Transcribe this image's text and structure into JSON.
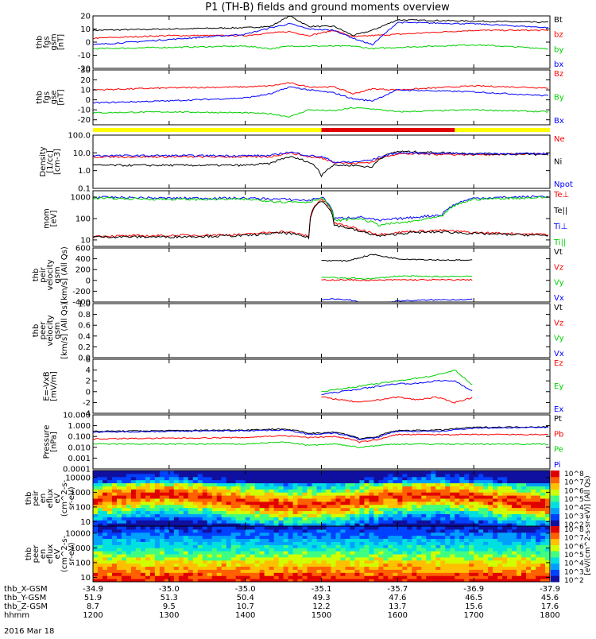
{
  "title": "P1 (TH-B) fields and ground moments overview",
  "date_label": "2016 Mar 18",
  "colors": {
    "black": "#000000",
    "red": "#ff0000",
    "green": "#00d000",
    "blue": "#0000ff",
    "yellow": "#ffff00",
    "barred": "#e00000"
  },
  "ephemeris": {
    "rows": [
      {
        "label": "thb_X-GSM",
        "values": [
          "-34.9",
          "-35.0",
          "-35.0",
          "-35.1",
          "-35.7",
          "-36.9",
          "-37.9"
        ]
      },
      {
        "label": "thb_Y-GSM",
        "values": [
          "51.9",
          "51.3",
          "50.4",
          "49.3",
          "47.6",
          "46.5",
          "45.6"
        ]
      },
      {
        "label": "thb_Z-GSM",
        "values": [
          "8.7",
          "9.5",
          "10.7",
          "12.2",
          "13.7",
          "15.6",
          "17.6"
        ]
      },
      {
        "label": "hhmm",
        "values": [
          "1200",
          "1300",
          "1400",
          "1500",
          "1600",
          "1700",
          "1800"
        ]
      }
    ]
  },
  "chart_data": [
    {
      "type": "line",
      "id": "fgs_gsm",
      "ylabel": [
        "thb",
        "fgs",
        "gsm",
        "[nT]"
      ],
      "ylim": [
        -20,
        20
      ],
      "ticks": [
        "20",
        "10",
        "0",
        "-10",
        "-20"
      ],
      "legend": [
        {
          "name": "Bt",
          "color": "#000000"
        },
        {
          "name": "bz",
          "color": "#ff0000"
        },
        {
          "name": "by",
          "color": "#00d000"
        },
        {
          "name": "bx",
          "color": "#0000ff"
        }
      ],
      "x": [
        "12:00",
        "13:00",
        "14:00",
        "14:20",
        "14:35",
        "14:50",
        "15:10",
        "15:25",
        "15:40",
        "16:00",
        "17:00",
        "18:00"
      ],
      "series": [
        {
          "name": "Bt",
          "values": [
            9,
            10,
            11,
            12,
            20,
            12,
            12,
            5,
            9,
            17,
            16,
            15
          ]
        },
        {
          "name": "bz",
          "values": [
            3,
            5,
            5,
            7,
            8,
            5,
            9,
            4,
            5,
            6,
            9,
            9
          ]
        },
        {
          "name": "by",
          "values": [
            -5,
            -4,
            -3,
            -5,
            -3,
            -3,
            -3,
            -3,
            -5,
            -4,
            -2,
            -5
          ]
        },
        {
          "name": "bx",
          "values": [
            -2,
            2,
            6,
            11,
            14,
            10,
            9,
            3,
            -2,
            15,
            14,
            11
          ]
        }
      ]
    },
    {
      "type": "line",
      "id": "fgs_gse",
      "ylabel": [
        "thb",
        "fgs",
        "gse",
        "[nT]"
      ],
      "ylim": [
        -25,
        30
      ],
      "ticks": [
        "30",
        "20",
        "10",
        "0",
        "-10",
        "-20"
      ],
      "legend": [
        {
          "name": "Bz",
          "color": "#ff0000"
        },
        {
          "name": "By",
          "color": "#00d000"
        },
        {
          "name": "Bx",
          "color": "#0000ff"
        }
      ],
      "x": [
        "12:00",
        "13:00",
        "14:00",
        "14:20",
        "14:35",
        "14:50",
        "15:10",
        "15:25",
        "15:40",
        "16:00",
        "17:00",
        "18:00"
      ],
      "series": [
        {
          "name": "Bz",
          "values": [
            10,
            12,
            13,
            14,
            17,
            13,
            13,
            6,
            11,
            10,
            14,
            12
          ]
        },
        {
          "name": "By",
          "values": [
            -13,
            -12,
            -13,
            -14,
            -17,
            -10,
            -11,
            -8,
            -9,
            -12,
            -10,
            -12
          ]
        },
        {
          "name": "Bx",
          "values": [
            -3,
            -1,
            2,
            6,
            13,
            10,
            7,
            1,
            -1,
            10,
            8,
            4
          ]
        }
      ]
    },
    {
      "type": "line",
      "id": "density",
      "ylabel": [
        "Density",
        "[1/cc]",
        "[cm-3]"
      ],
      "scale": "log",
      "ylim": [
        0.1,
        100
      ],
      "ticks": [
        "100.0",
        "10.0",
        "1.0",
        "0.1"
      ],
      "legend": [
        {
          "name": "Ne",
          "color": "#ff0000"
        },
        {
          "name": "Ni",
          "color": "#000000"
        },
        {
          "name": "Npot",
          "color": "#0000ff"
        }
      ],
      "x": [
        "12:00",
        "13:00",
        "14:00",
        "14:20",
        "14:35",
        "14:50",
        "15:00",
        "15:10",
        "15:25",
        "15:40",
        "16:00",
        "17:00",
        "18:00"
      ],
      "series": [
        {
          "name": "Ne",
          "values": [
            6,
            6,
            6,
            6,
            10,
            6,
            5,
            3,
            2.5,
            3,
            9,
            8,
            9
          ]
        },
        {
          "name": "Ni",
          "values": [
            2,
            2,
            2,
            2.5,
            6,
            3,
            0.5,
            2,
            2,
            1.5,
            12,
            9,
            8
          ]
        },
        {
          "name": "Npot",
          "values": [
            7,
            7,
            7,
            7,
            11,
            7,
            6,
            3,
            3,
            4,
            10,
            9,
            9
          ]
        }
      ]
    },
    {
      "type": "line",
      "id": "temperature",
      "ylabel": [
        "mom",
        "[eV]"
      ],
      "scale": "log",
      "ylim": [
        5,
        2000
      ],
      "ticks": [
        "1000",
        "100",
        "10"
      ],
      "legend": [
        {
          "name": "Te⊥",
          "color": "#ff0000"
        },
        {
          "name": "Te||",
          "color": "#000000"
        },
        {
          "name": "Ti⊥",
          "color": "#0000ff"
        },
        {
          "name": "Ti||",
          "color": "#00d000"
        }
      ],
      "x": [
        "12:00",
        "13:00",
        "14:00",
        "14:30",
        "14:50",
        "15:00",
        "15:10",
        "15:30",
        "15:45",
        "16:10",
        "16:35",
        "17:00",
        "18:00"
      ],
      "series": [
        {
          "name": "Te⊥",
          "values": [
            15,
            16,
            18,
            25,
            15,
            800,
            60,
            30,
            18,
            25,
            28,
            22,
            18
          ]
        },
        {
          "name": "Te||",
          "values": [
            14,
            14,
            16,
            22,
            13,
            700,
            50,
            25,
            15,
            22,
            24,
            20,
            16
          ]
        },
        {
          "name": "Ti⊥",
          "values": [
            1000,
            900,
            900,
            800,
            700,
            1000,
            100,
            120,
            80,
            110,
            150,
            900,
            1100
          ]
        },
        {
          "name": "Ti||",
          "values": [
            900,
            800,
            800,
            600,
            600,
            900,
            80,
            100,
            50,
            70,
            120,
            800,
            1000
          ]
        }
      ]
    },
    {
      "type": "line",
      "id": "velocity_i",
      "ylabel": [
        "thb",
        "peir",
        "velocity",
        "gsm",
        "[km/s] (All Qs)"
      ],
      "ylim": [
        -400,
        600
      ],
      "ticks": [
        "600",
        "400",
        "200",
        "0",
        "-200",
        "-400"
      ],
      "legend": [
        {
          "name": "Vt",
          "color": "#000000"
        },
        {
          "name": "Vz",
          "color": "#ff0000"
        },
        {
          "name": "Vy",
          "color": "#00d000"
        },
        {
          "name": "Vx",
          "color": "#0000ff"
        }
      ],
      "x": [
        "15:00",
        "15:20",
        "15:40",
        "16:00",
        "16:30",
        "17:00"
      ],
      "series": [
        {
          "name": "Vt",
          "values": [
            370,
            360,
            480,
            400,
            380,
            370
          ]
        },
        {
          "name": "Vz",
          "values": [
            10,
            10,
            0,
            10,
            10,
            10
          ]
        },
        {
          "name": "Vy",
          "values": [
            60,
            40,
            30,
            80,
            70,
            80
          ]
        },
        {
          "name": "Vx",
          "values": [
            -350,
            -350,
            -460,
            -380,
            -360,
            -350
          ]
        }
      ]
    },
    {
      "type": "line",
      "id": "velocity_e",
      "ylabel": [
        "thb",
        "peer",
        "velocity",
        "gsm",
        "[km/s] (All Qs)"
      ],
      "ylim": [
        0,
        1
      ],
      "ticks": [
        "1.0",
        "0.8",
        "0.6",
        "0.4",
        "0.2",
        "0.0"
      ],
      "legend": [
        {
          "name": "Vt",
          "color": "#000000"
        },
        {
          "name": "Vz",
          "color": "#ff0000"
        },
        {
          "name": "Vy",
          "color": "#00d000"
        },
        {
          "name": "Vx",
          "color": "#0000ff"
        }
      ],
      "series": []
    },
    {
      "type": "line",
      "id": "e_field",
      "ylabel": [
        "E=-VxB",
        "[mV/m]"
      ],
      "ylim": [
        -4,
        6
      ],
      "ticks": [
        "6",
        "4",
        "2",
        "0",
        "-2",
        "-4"
      ],
      "legend": [
        {
          "name": "Ez",
          "color": "#ff0000"
        },
        {
          "name": "Ey",
          "color": "#00d000"
        },
        {
          "name": "Ex",
          "color": "#0000ff"
        }
      ],
      "x": [
        "15:00",
        "15:15",
        "15:30",
        "15:45",
        "16:00",
        "16:15",
        "16:30",
        "16:45",
        "17:00"
      ],
      "series": [
        {
          "name": "Ez",
          "values": [
            -1,
            -1.5,
            -2,
            -1.5,
            -1,
            -1.5,
            -1,
            -2,
            -1
          ]
        },
        {
          "name": "Ey",
          "values": [
            0,
            0.5,
            1,
            1.5,
            2,
            2.5,
            3,
            4,
            1
          ]
        },
        {
          "name": "Ex",
          "values": [
            -0.5,
            0,
            0.5,
            1,
            1.5,
            1.5,
            2,
            2,
            0
          ]
        }
      ]
    },
    {
      "type": "line",
      "id": "pressure",
      "ylabel": [
        "Pressure",
        "[nPa]"
      ],
      "scale": "log",
      "ylim": [
        0.0001,
        10
      ],
      "ticks": [
        "10.000",
        "1.000",
        "0.100",
        "0.010",
        "0.001",
        "0.0001"
      ],
      "legend": [
        {
          "name": "Pt",
          "color": "#000000"
        },
        {
          "name": "Pb",
          "color": "#ff0000"
        },
        {
          "name": "Pe",
          "color": "#00d000"
        },
        {
          "name": "Pi",
          "color": "#0000ff"
        }
      ],
      "x": [
        "12:00",
        "13:00",
        "14:00",
        "14:30",
        "14:50",
        "15:10",
        "15:30",
        "15:45",
        "16:00",
        "16:35",
        "17:00",
        "18:00"
      ],
      "series": [
        {
          "name": "Pt",
          "values": [
            0.3,
            0.35,
            0.4,
            0.5,
            0.2,
            0.25,
            0.06,
            0.1,
            0.35,
            0.4,
            0.7,
            0.8
          ]
        },
        {
          "name": "Pb",
          "values": [
            0.06,
            0.07,
            0.08,
            0.12,
            0.08,
            0.1,
            0.03,
            0.05,
            0.15,
            0.15,
            0.15,
            0.15
          ]
        },
        {
          "name": "Pe",
          "values": [
            0.02,
            0.02,
            0.02,
            0.03,
            0.015,
            0.02,
            0.01,
            0.015,
            0.02,
            0.02,
            0.02,
            0.02
          ]
        },
        {
          "name": "Pi",
          "values": [
            0.25,
            0.3,
            0.35,
            0.4,
            0.15,
            0.2,
            0.05,
            0.08,
            0.3,
            0.3,
            0.6,
            0.7
          ]
        }
      ]
    },
    {
      "type": "heatmap",
      "id": "ion_spec",
      "ylabel": [
        "thb",
        "peir",
        "en",
        "eflux",
        "eV",
        "(cm^2-s-",
        "sr-eV)"
      ],
      "scale": "log",
      "ylim": [
        5,
        30000
      ],
      "ticks": [
        "10000",
        "1000",
        "100",
        "10"
      ],
      "colorbar": {
        "label": "[eV/(cm^2-s-sr-eV)] (All Qs)",
        "ticks": [
          "10^8",
          "10^7",
          "10^6",
          "10^5",
          "10^4",
          "10^3",
          "10^2"
        ]
      }
    },
    {
      "type": "heatmap",
      "id": "elec_spec",
      "ylabel": [
        "thb",
        "peer",
        "en",
        "eflux",
        "eV",
        "(cm^2-s-",
        "sr-eV)"
      ],
      "scale": "log",
      "ylim": [
        5,
        30000
      ],
      "ticks": [
        "10000",
        "1000",
        "100",
        "10"
      ],
      "colorbar": {
        "label": "[eV/(cm^2-s-sr-eV)]",
        "ticks": [
          "10^8",
          "10^7",
          "10^6",
          "10^5",
          "10^4",
          "10^3",
          "10^2"
        ]
      }
    }
  ]
}
